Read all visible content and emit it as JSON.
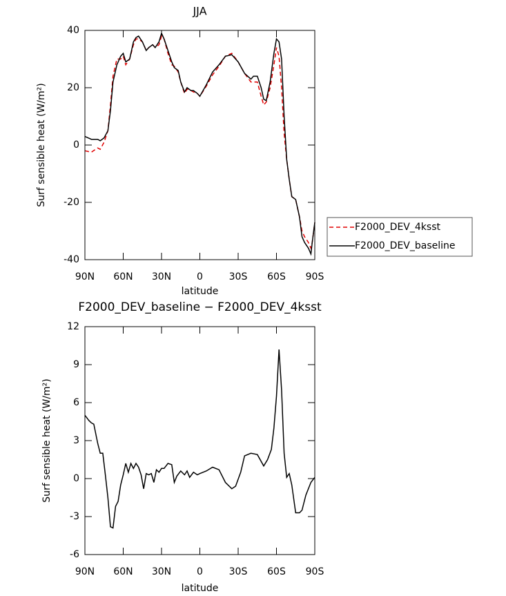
{
  "chart_data": [
    {
      "type": "line",
      "title": "JJA",
      "x_label": "latitude",
      "y_label": "Surf sensible heat (W/m²)",
      "x": [
        90,
        85,
        80,
        78,
        75,
        72,
        70,
        68,
        65,
        62,
        60,
        58,
        55,
        52,
        50,
        48,
        45,
        42,
        40,
        37,
        35,
        32,
        30,
        28,
        25,
        22,
        20,
        17,
        15,
        12,
        10,
        7,
        5,
        2,
        0,
        -5,
        -10,
        -15,
        -20,
        -25,
        -30,
        -35,
        -40,
        -42,
        -45,
        -48,
        -50,
        -52,
        -55,
        -58,
        -60,
        -62,
        -64,
        -66,
        -68,
        -70,
        -72,
        -75,
        -78,
        -80,
        -82,
        -85,
        -87,
        -88,
        -90
      ],
      "xlim": [
        90,
        -90
      ],
      "xticks": [
        {
          "value": 90,
          "label": "90N"
        },
        {
          "value": 60,
          "label": "60N"
        },
        {
          "value": 30,
          "label": "30N"
        },
        0,
        {
          "value": -30,
          "label": "30S"
        },
        {
          "value": -60,
          "label": "60S"
        },
        {
          "value": -90,
          "label": "90S"
        }
      ],
      "ylim": [
        -40,
        40
      ],
      "yticks": [
        -40,
        -20,
        0,
        20,
        40
      ],
      "legend": "outside-right",
      "series": [
        {
          "name": "F2000_DEV_4ksst",
          "color": "#e00000",
          "dash": "dashed",
          "values": [
            -2,
            -2.5,
            -1,
            -1.5,
            1,
            5,
            14,
            24,
            30,
            30,
            31,
            28,
            30,
            35,
            37,
            37,
            36,
            33,
            34,
            35,
            34,
            35,
            38,
            37,
            32,
            28,
            27.5,
            25.5,
            22,
            18,
            19.5,
            19,
            18.5,
            18,
            17,
            20.5,
            24.5,
            27.5,
            31,
            32,
            29,
            25,
            22,
            22,
            22,
            17,
            14,
            15,
            20,
            28,
            34,
            31,
            20,
            4,
            -5,
            -12,
            -18,
            -19,
            -25,
            -30,
            -32,
            -34,
            -36,
            -34,
            -27
          ]
        },
        {
          "name": "F2000_DEV_baseline",
          "color": "#000000",
          "dash": "solid",
          "values": [
            3,
            2,
            2,
            1.5,
            2.5,
            5,
            12,
            22,
            28,
            31,
            32,
            29,
            30,
            36,
            37.5,
            38,
            36,
            33,
            34,
            35,
            34,
            36,
            39,
            37,
            33,
            29,
            27,
            26,
            22,
            18.5,
            20,
            19,
            19,
            18,
            17,
            21,
            25.5,
            28,
            31,
            31.5,
            29,
            25,
            23,
            24,
            24,
            20,
            16,
            15.5,
            22,
            32,
            37,
            36,
            30,
            10,
            -5,
            -12,
            -18,
            -19,
            -25,
            -32,
            -34,
            -36,
            -38,
            -34,
            -27
          ]
        }
      ]
    },
    {
      "type": "line",
      "title": "F2000_DEV_baseline − F2000_DEV_4ksst",
      "x_label": "latitude",
      "y_label": "Surf sensible heat (W/m²)",
      "x": [
        90,
        87,
        85,
        83,
        80,
        78,
        76,
        74,
        72,
        70,
        68,
        66,
        64,
        62,
        60,
        58,
        56,
        54,
        52,
        50,
        48,
        46,
        44,
        42,
        40,
        38,
        36,
        34,
        32,
        30,
        28,
        25,
        22,
        20,
        18,
        15,
        12,
        10,
        8,
        5,
        2,
        0,
        -5,
        -10,
        -15,
        -20,
        -25,
        -28,
        -32,
        -35,
        -40,
        -45,
        -50,
        -53,
        -56,
        -58,
        -60,
        -62,
        -64,
        -66,
        -68,
        -70,
        -72,
        -75,
        -78,
        -80,
        -83,
        -87,
        -90
      ],
      "values": [
        5,
        4.6,
        4.4,
        4.3,
        2.8,
        2,
        2,
        0.3,
        -1.5,
        -3.8,
        -3.9,
        -2.2,
        -1.8,
        -0.5,
        0.3,
        1.2,
        0.5,
        1.2,
        0.8,
        1.2,
        0.9,
        0.3,
        -0.8,
        0.4,
        0.3,
        0.4,
        -0.3,
        0.7,
        0.5,
        0.8,
        0.8,
        1.2,
        1.1,
        -0.3,
        0.2,
        0.6,
        0.3,
        0.6,
        0.1,
        0.5,
        0.3,
        0.4,
        0.6,
        0.9,
        0.7,
        -0.3,
        -0.8,
        -0.6,
        0.5,
        1.8,
        2,
        1.9,
        1,
        1.5,
        2.3,
        4,
        6.5,
        10.2,
        7,
        2,
        0.1,
        0.4,
        -0.5,
        -2.7,
        -2.7,
        -2.5,
        -1.3,
        -0.3,
        0.1
      ],
      "color": "#000000",
      "xlim": [
        90,
        -90
      ],
      "xticks": [
        {
          "value": 90,
          "label": "90N"
        },
        {
          "value": 60,
          "label": "60N"
        },
        {
          "value": 30,
          "label": "30N"
        },
        0,
        {
          "value": -30,
          "label": "30S"
        },
        {
          "value": -60,
          "label": "60S"
        },
        {
          "value": -90,
          "label": "90S"
        }
      ],
      "ylim": [
        -6,
        12
      ],
      "yticks": [
        -6,
        -3,
        0,
        3,
        6,
        9,
        12
      ]
    }
  ]
}
